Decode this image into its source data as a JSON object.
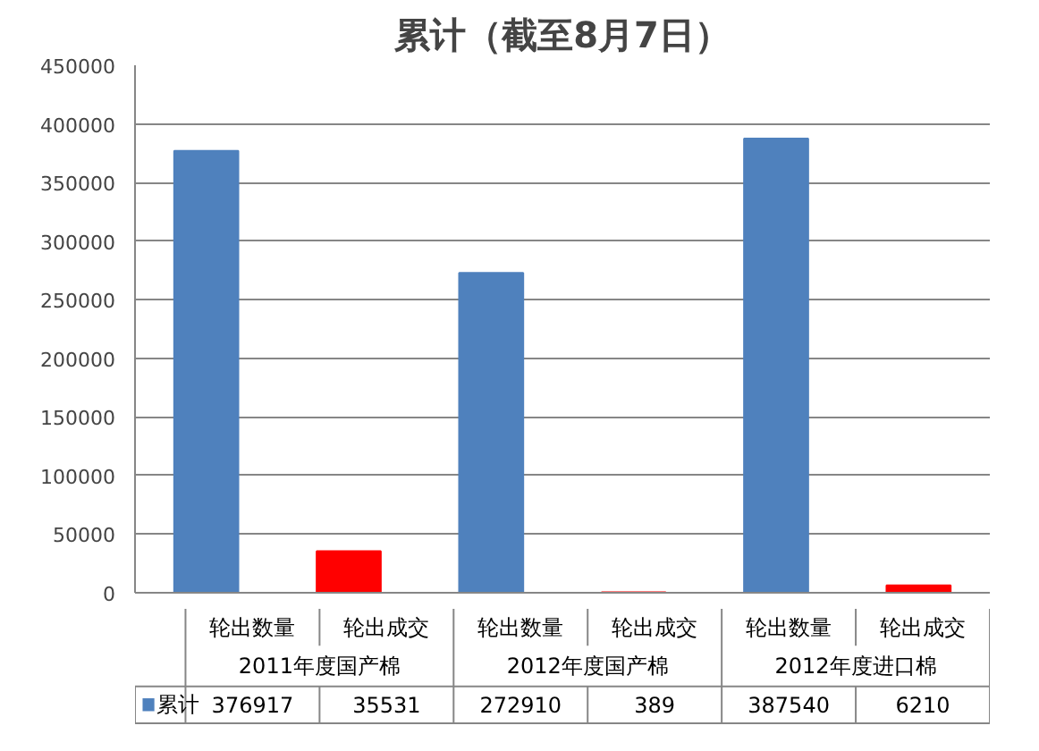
{
  "chart_data": {
    "type": "bar",
    "title": "累计（截至8月7日）",
    "categories": [
      "轮出数量",
      "轮出成交",
      "轮出数量",
      "轮出成交",
      "轮出数量",
      "轮出成交"
    ],
    "annotations": [
      "2011年度国产棉",
      "2012年度国产棉",
      "2012年度进口棉"
    ],
    "series": [
      {
        "name": "累计",
        "color": "#4f81bd",
        "colors": [
          "#4f81bd",
          "#ff0000",
          "#4f81bd",
          "#ff0000",
          "#4f81bd",
          "#ff0000"
        ],
        "values": [
          376917,
          35531,
          272910,
          389,
          387540,
          6210
        ]
      }
    ],
    "ylim": [
      0,
      450000
    ],
    "yticks": [
      0,
      50000,
      100000,
      150000,
      200000,
      250000,
      300000,
      350000,
      400000,
      450000
    ],
    "grid": "y",
    "data_labels": true
  }
}
